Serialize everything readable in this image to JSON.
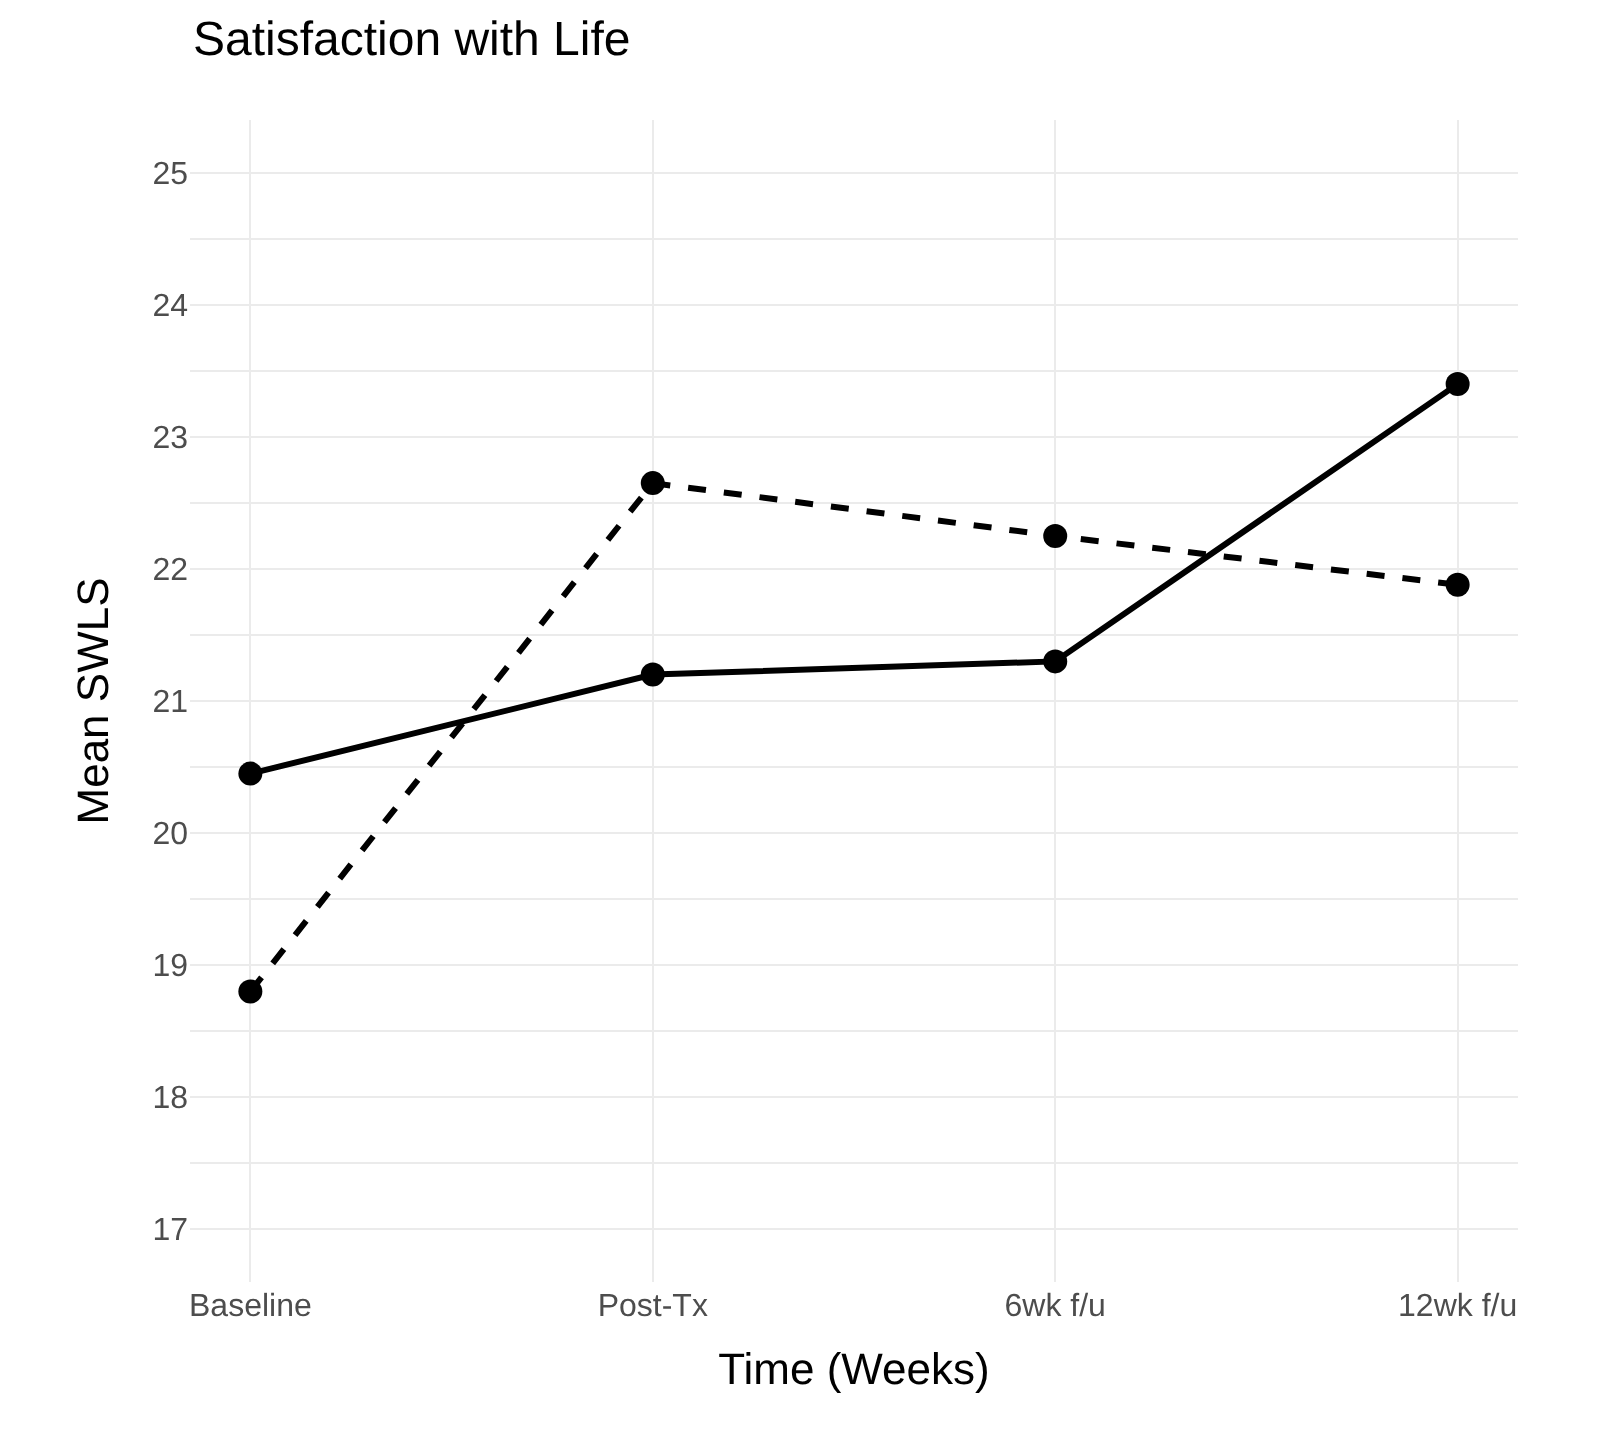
{
  "chart_data": {
    "type": "line",
    "title": "Satisfaction with Life",
    "xlabel": "Time (Weeks)",
    "ylabel": "Mean SWLS",
    "categories": [
      "Baseline",
      "Post-Tx",
      "6wk f/u",
      "12wk f/u"
    ],
    "series": [
      {
        "color": "#000000",
        "line_style": "solid",
        "values": [
          20.45,
          21.2,
          21.3,
          23.4
        ]
      },
      {
        "color": "#000000",
        "line_style": "dashed",
        "values": [
          18.8,
          22.65,
          22.25,
          21.88
        ]
      }
    ],
    "ylim": [
      16.6,
      25.4
    ],
    "yticks": [
      17,
      {
        "value": 17.5,
        "label": null
      },
      18,
      {
        "value": 18.5,
        "label": null
      },
      19,
      {
        "value": 19.5,
        "label": null
      },
      20,
      {
        "value": 20.5,
        "label": null
      },
      21,
      {
        "value": 21.5,
        "label": null
      },
      22,
      {
        "value": 22.5,
        "label": null
      },
      23,
      {
        "value": 23.5,
        "label": null
      },
      24,
      {
        "value": 24.5,
        "label": null
      },
      25
    ],
    "grid": true,
    "marker": "circle"
  }
}
